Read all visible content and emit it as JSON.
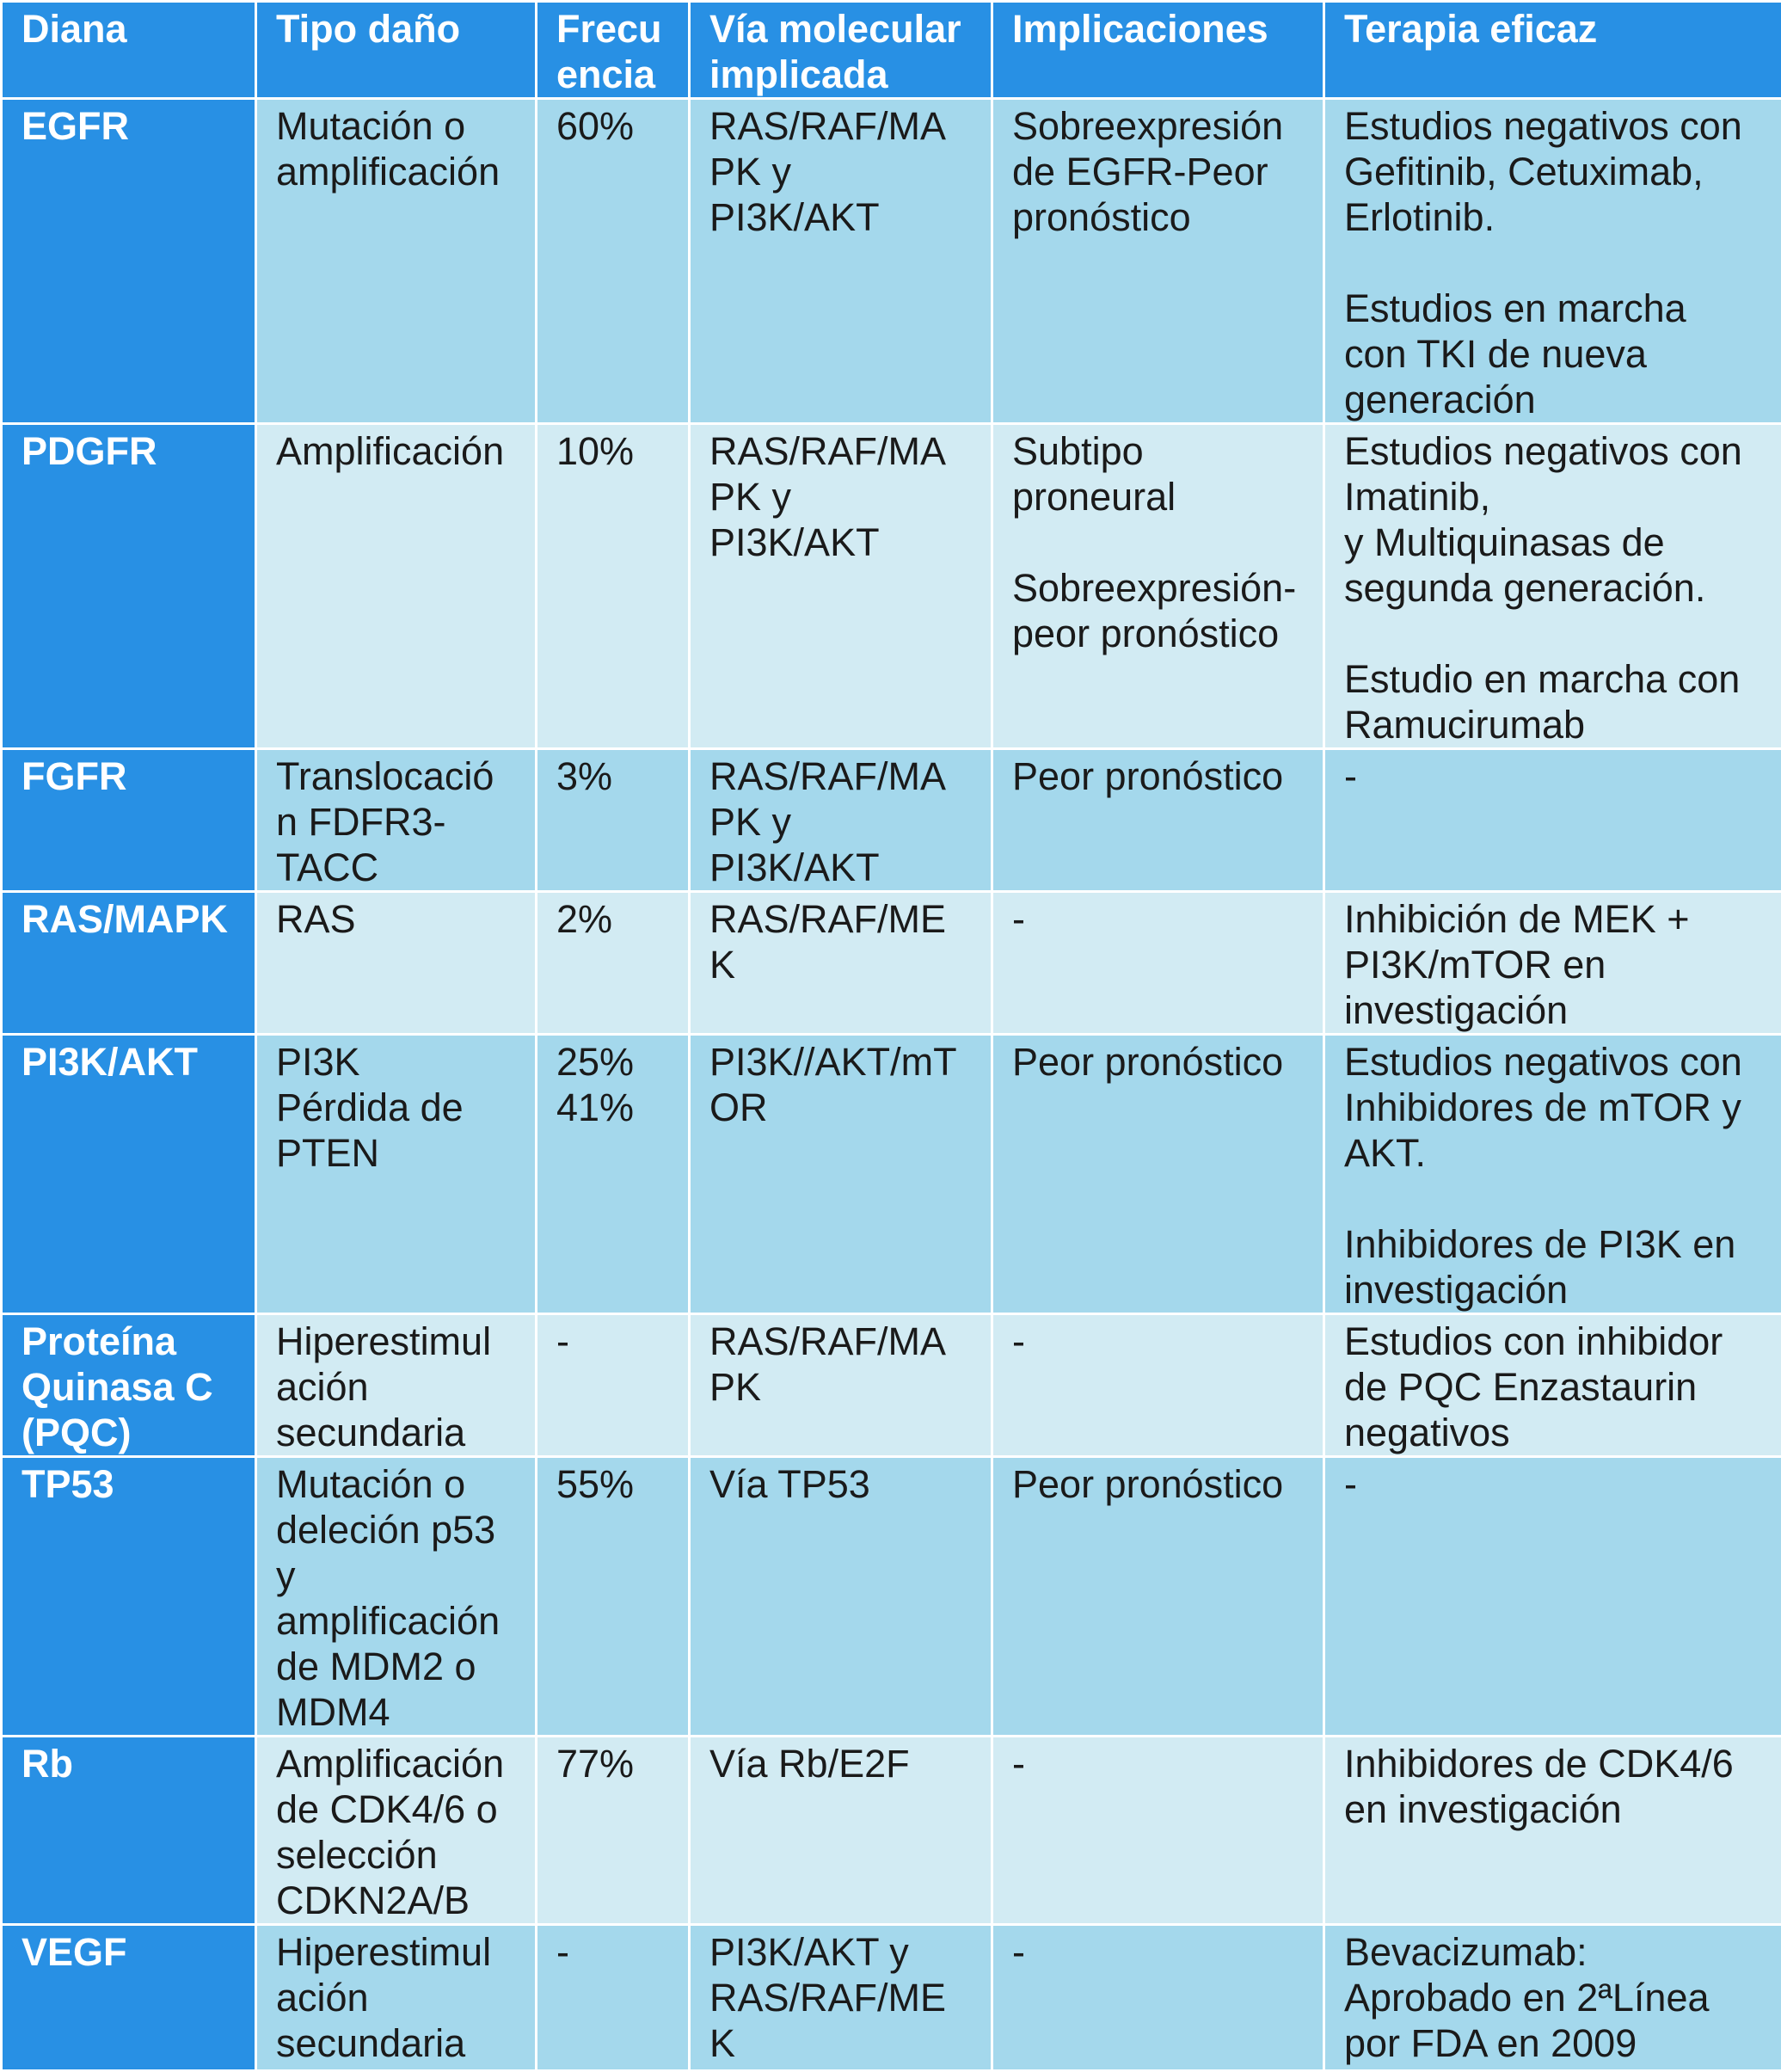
{
  "table": {
    "headers": [
      "Diana",
      "Tipo daño",
      "Frecu\nencia",
      "Vía molecular\nimplicada",
      "Implicaciones",
      "Terapia eficaz"
    ],
    "rows": [
      {
        "diana": "EGFR",
        "tipo": "Mutación o\namplificación",
        "frecuencia": "60%",
        "via": "RAS/RAF/MA\nPK y\nPI3K/AKT",
        "implicaciones": "Sobreexpresión\nde EGFR-Peor\npronóstico",
        "terapia": "Estudios negativos con\nGefitinib, Cetuximab,\nErlotinib.\n\nEstudios en marcha\ncon TKI de nueva\ngeneración"
      },
      {
        "diana": "PDGFR",
        "tipo": "Amplificación",
        "frecuencia": "10%",
        "via": "RAS/RAF/MA\nPK y\nPI3K/AKT",
        "implicaciones": "Subtipo\nproneural\n\nSobreexpresión-\npeor pronóstico",
        "terapia": "Estudios negativos con\nImatinib,\ny Multiquinasas de\nsegunda generación.\n\nEstudio en marcha con\nRamucirumab"
      },
      {
        "diana": "FGFR",
        "tipo": "Translocació\nn FDFR3-\nTACC",
        "frecuencia": "3%",
        "via": "RAS/RAF/MA\nPK y\nPI3K/AKT",
        "implicaciones": "Peor pronóstico",
        "terapia": "-"
      },
      {
        "diana": "RAS/MAPK",
        "tipo": "RAS",
        "frecuencia": "2%",
        "via": "RAS/RAF/ME\nK",
        "implicaciones": "-",
        "terapia": "Inhibición de MEK +\nPI3K/mTOR en\ninvestigación"
      },
      {
        "diana": "PI3K/AKT",
        "tipo": "PI3K\nPérdida de\nPTEN",
        "frecuencia": "25%\n41%",
        "via": "PI3K//AKT/mT\nOR",
        "implicaciones": "Peor pronóstico",
        "terapia": "Estudios negativos con\nInhibidores de mTOR y\nAKT.\n\nInhibidores de PI3K en\ninvestigación"
      },
      {
        "diana": "Proteína\nQuinasa C\n(PQC)",
        "tipo": "Hiperestimul\nación\nsecundaria",
        "frecuencia": "-",
        "via": "RAS/RAF/MA\nPK",
        "implicaciones": "-",
        "terapia": "Estudios con inhibidor\nde PQC Enzastaurin\nnegativos"
      },
      {
        "diana": "TP53",
        "tipo": "Mutación o\ndeleción p53\ny\namplificación\nde MDM2 o\nMDM4",
        "frecuencia": "55%",
        "via": "Vía TP53",
        "implicaciones": "Peor pronóstico",
        "terapia": "-"
      },
      {
        "diana": "Rb",
        "tipo": "Amplificación\nde CDK4/6 o\nselección\nCDKN2A/B",
        "frecuencia": "77%",
        "via": "Vía Rb/E2F",
        "implicaciones": "-",
        "terapia": "Inhibidores de CDK4/6\nen investigación"
      },
      {
        "diana": "VEGF",
        "tipo": "Hiperestimul\nación\nsecundaria",
        "frecuencia": "-",
        "via": "PI3K/AKT y\nRAS/RAF/ME\nK",
        "implicaciones": "-",
        "terapia": "Bevacizumab:\nAprobado en 2ªLínea\npor FDA en 2009"
      }
    ]
  },
  "colors": {
    "header_bg": "#2890e4",
    "row_dark": "#a4d8ec",
    "row_light": "#d2ebf3",
    "header_text": "#ffffff",
    "body_text": "#1a1a1a"
  }
}
